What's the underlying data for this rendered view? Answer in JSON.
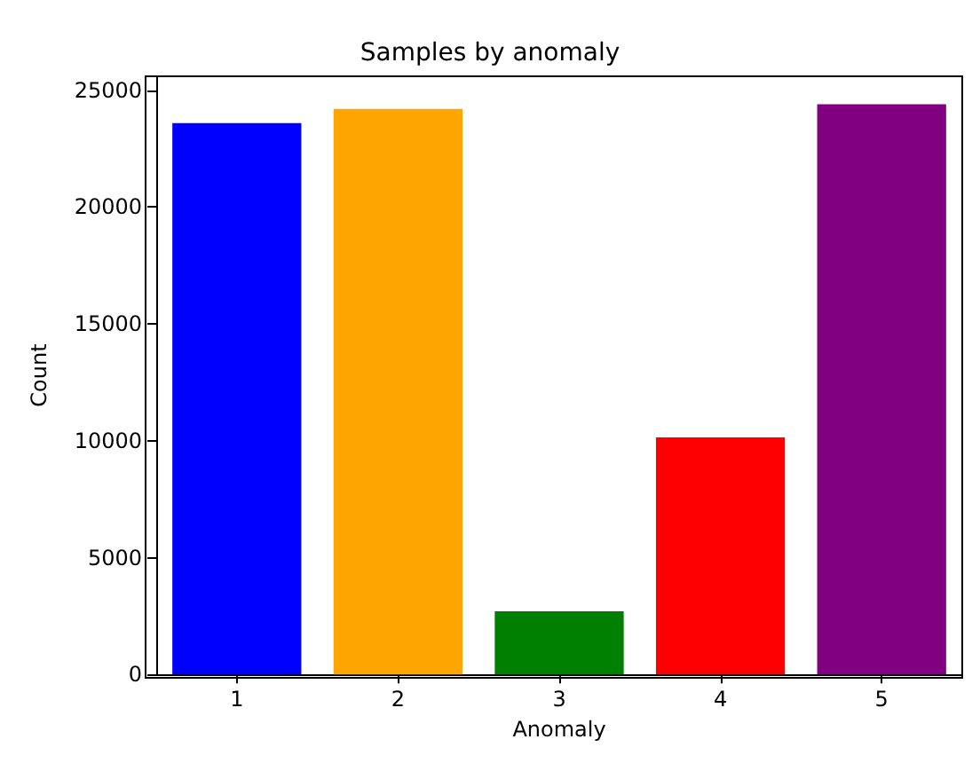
{
  "chart_data": {
    "type": "bar",
    "title": "Samples by anomaly",
    "xlabel": "Anomaly",
    "ylabel": "Count",
    "categories": [
      "1",
      "2",
      "3",
      "4",
      "5"
    ],
    "values": [
      23600,
      24200,
      2700,
      10150,
      24400
    ],
    "colors": [
      "#0000ff",
      "#ffa500",
      "#008000",
      "#ff0000",
      "#800080"
    ],
    "ylim": [
      0,
      25600
    ],
    "yticks": [
      0,
      5000,
      10000,
      15000,
      20000,
      25000
    ],
    "grid": false
  }
}
